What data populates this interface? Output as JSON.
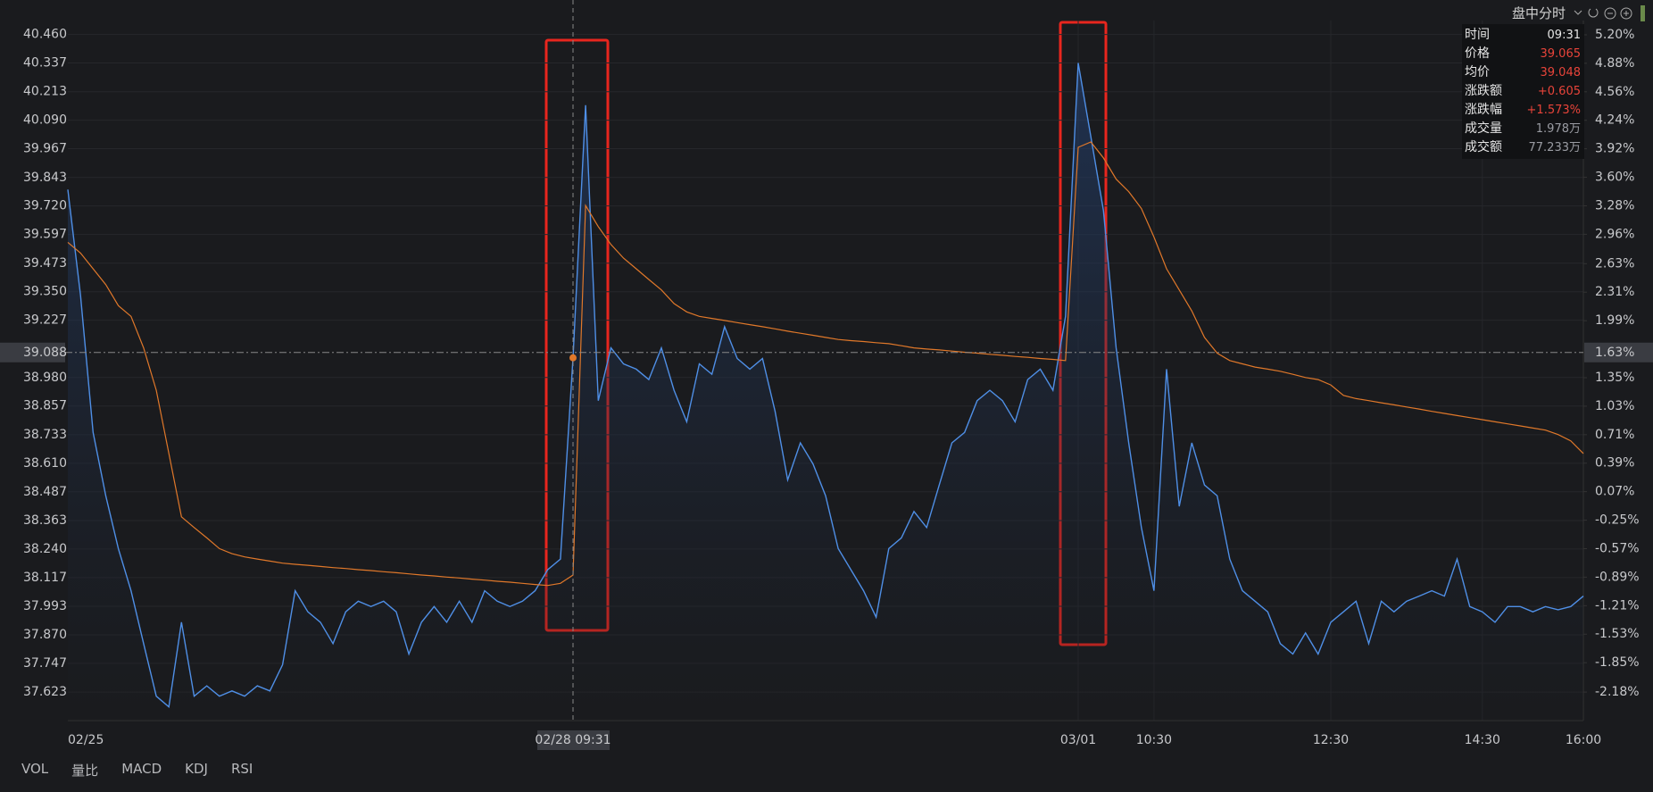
{
  "toolbar": {
    "mode": "盘中分时"
  },
  "info_panel": {
    "rows": [
      {
        "label": "时间",
        "value": "09:31",
        "color": "#e6e6e6"
      },
      {
        "label": "价格",
        "value": "39.065",
        "color": "#e8443a"
      },
      {
        "label": "均价",
        "value": "39.048",
        "color": "#e8443a"
      },
      {
        "label": "涨跌额",
        "value": "+0.605",
        "color": "#e8443a"
      },
      {
        "label": "涨跌幅",
        "value": "+1.573%",
        "color": "#e8443a"
      },
      {
        "label": "成交量",
        "value": "1.978万",
        "color": "#9a9ca3"
      },
      {
        "label": "成交额",
        "value": "77.233万",
        "color": "#9a9ca3"
      }
    ]
  },
  "indicator_tabs": [
    "VOL",
    "量比",
    "MACD",
    "KDJ",
    "RSI"
  ],
  "chart_data": {
    "type": "line",
    "categories": [
      "02/25",
      null,
      null,
      null,
      null,
      null,
      null,
      null,
      null,
      null,
      null,
      null,
      null,
      null,
      null,
      null,
      null,
      null,
      null,
      null,
      null,
      null,
      null,
      null,
      null,
      null,
      null,
      null,
      null,
      null,
      null,
      null,
      null,
      null,
      null,
      null,
      null,
      null,
      null,
      null,
      "02/28 09:31",
      null,
      null,
      null,
      null,
      null,
      null,
      null,
      null,
      null,
      null,
      null,
      null,
      null,
      null,
      null,
      null,
      null,
      null,
      null,
      null,
      null,
      null,
      null,
      null,
      null,
      null,
      null,
      null,
      null,
      null,
      null,
      null,
      null,
      null,
      null,
      null,
      null,
      null,
      null,
      "03/01",
      null,
      null,
      null,
      null,
      null,
      "10:30",
      null,
      null,
      null,
      null,
      null,
      null,
      null,
      null,
      null,
      null,
      null,
      null,
      null,
      "12:30",
      null,
      null,
      null,
      null,
      null,
      null,
      null,
      null,
      null,
      null,
      null,
      "14:30",
      null,
      null,
      null,
      null,
      null,
      null,
      null,
      "16:00"
    ],
    "series": [
      {
        "color": "#4f8fe6",
        "area": true,
        "values": [
          39.791,
          39.335,
          38.743,
          38.47,
          38.242,
          38.06,
          37.832,
          37.605,
          37.559,
          37.924,
          37.605,
          37.65,
          37.605,
          37.628,
          37.605,
          37.65,
          37.628,
          37.741,
          38.06,
          37.969,
          37.924,
          37.832,
          37.969,
          38.015,
          37.992,
          38.015,
          37.969,
          37.787,
          37.924,
          37.992,
          37.924,
          38.015,
          37.924,
          38.06,
          38.015,
          37.992,
          38.015,
          38.06,
          38.151,
          38.197,
          39.065,
          40.155,
          38.88,
          39.108,
          39.039,
          39.016,
          38.971,
          39.108,
          38.925,
          38.789,
          39.039,
          38.994,
          39.199,
          39.062,
          39.016,
          39.062,
          38.834,
          38.538,
          38.698,
          38.607,
          38.47,
          38.242,
          38.151,
          38.06,
          37.946,
          38.242,
          38.288,
          38.402,
          38.333,
          38.516,
          38.698,
          38.743,
          38.88,
          38.925,
          38.88,
          38.789,
          38.971,
          39.016,
          38.925,
          39.244,
          40.337,
          40.018,
          39.7,
          39.108,
          38.698,
          38.333,
          38.06,
          39.016,
          38.424,
          38.698,
          38.516,
          38.47,
          38.197,
          38.06,
          38.015,
          37.969,
          37.832,
          37.787,
          37.878,
          37.787,
          37.924,
          37.969,
          38.015,
          37.832,
          38.015,
          37.969,
          38.015,
          38.037,
          38.06,
          38.037,
          38.197,
          37.992,
          37.969,
          37.924,
          37.992,
          37.992,
          37.969,
          37.992,
          37.978,
          37.992,
          38.037
        ]
      },
      {
        "color": "#e0782a",
        "area": false,
        "values": [
          39.563,
          39.517,
          39.449,
          39.381,
          39.29,
          39.244,
          39.108,
          38.925,
          38.652,
          38.379,
          38.333,
          38.288,
          38.242,
          38.22,
          38.206,
          38.197,
          38.188,
          38.179,
          38.174,
          38.17,
          38.165,
          38.16,
          38.156,
          38.151,
          38.147,
          38.142,
          38.138,
          38.133,
          38.128,
          38.124,
          38.119,
          38.115,
          38.11,
          38.106,
          38.101,
          38.097,
          38.092,
          38.087,
          38.083,
          38.092,
          38.128,
          39.722,
          39.631,
          39.554,
          39.495,
          39.449,
          39.403,
          39.358,
          39.299,
          39.263,
          39.244,
          39.235,
          39.226,
          39.217,
          39.208,
          39.199,
          39.19,
          39.18,
          39.171,
          39.162,
          39.153,
          39.144,
          39.139,
          39.135,
          39.13,
          39.126,
          39.117,
          39.108,
          39.103,
          39.099,
          39.094,
          39.089,
          39.085,
          39.08,
          39.076,
          39.071,
          39.067,
          39.062,
          39.058,
          39.053,
          39.973,
          39.996,
          39.927,
          39.836,
          39.782,
          39.709,
          39.586,
          39.449,
          39.358,
          39.267,
          39.153,
          39.085,
          39.053,
          39.039,
          39.025,
          39.016,
          39.007,
          38.994,
          38.98,
          38.971,
          38.948,
          38.903,
          38.889,
          38.88,
          38.871,
          38.862,
          38.853,
          38.844,
          38.834,
          38.825,
          38.816,
          38.807,
          38.798,
          38.789,
          38.78,
          38.771,
          38.762,
          38.753,
          38.734,
          38.707,
          38.652
        ]
      }
    ],
    "ylim": [
      37.5,
      40.52
    ],
    "yticks": [
      {
        "value": 40.46,
        "label": "40.460"
      },
      40.337,
      40.213,
      {
        "value": 40.09,
        "label": "40.090"
      },
      39.967,
      39.843,
      {
        "value": 39.72,
        "label": "39.720"
      },
      39.597,
      39.473,
      {
        "value": 39.35,
        "label": "39.350"
      },
      39.227,
      {
        "value": 38.98,
        "label": "38.980"
      },
      38.857,
      38.733,
      {
        "value": 38.61,
        "label": "38.610"
      },
      38.487,
      38.363,
      {
        "value": 38.24,
        "label": "38.240"
      },
      38.117,
      37.993,
      {
        "value": 37.87,
        "label": "37.870"
      },
      37.747,
      37.623
    ],
    "y2lim": [
      -2.5,
      5.36
    ],
    "y2ticks": [
      {
        "value": 5.2,
        "label": "5.20%"
      },
      {
        "value": 4.88,
        "label": "4.88%"
      },
      {
        "value": 4.56,
        "label": "4.56%"
      },
      {
        "value": 4.24,
        "label": "4.24%"
      },
      {
        "value": 3.92,
        "label": "3.92%"
      },
      {
        "value": 3.6,
        "label": "3.60%"
      },
      {
        "value": 3.28,
        "label": "3.28%"
      },
      {
        "value": 2.96,
        "label": "2.96%"
      },
      {
        "value": 2.63,
        "label": "2.63%"
      },
      {
        "value": 2.31,
        "label": "2.31%"
      },
      {
        "value": 1.99,
        "label": "1.99%"
      },
      {
        "value": 1.35,
        "label": "1.35%"
      },
      {
        "value": 1.03,
        "label": "1.03%"
      },
      {
        "value": 0.71,
        "label": "0.71%"
      },
      {
        "value": 0.39,
        "label": "0.39%"
      },
      {
        "value": 0.07,
        "label": "0.07%"
      },
      {
        "value": -0.25,
        "label": "-0.25%"
      },
      {
        "value": -0.57,
        "label": "-0.57%"
      },
      {
        "value": -0.89,
        "label": "-0.89%"
      },
      {
        "value": -1.21,
        "label": "-1.21%"
      },
      {
        "value": -1.53,
        "label": "-1.53%"
      },
      {
        "value": -1.85,
        "label": "-1.85%"
      },
      {
        "value": -2.18,
        "label": "-2.18%"
      }
    ],
    "up_color": "#e8443a",
    "down_color": "#2eb85c",
    "grid": true,
    "crosshair": {
      "x": "02/28 09:31",
      "y": 39.088,
      "y2": {
        "value": 1.63,
        "label": "1.63%"
      },
      "marker_color": "#e0782a"
    }
  }
}
